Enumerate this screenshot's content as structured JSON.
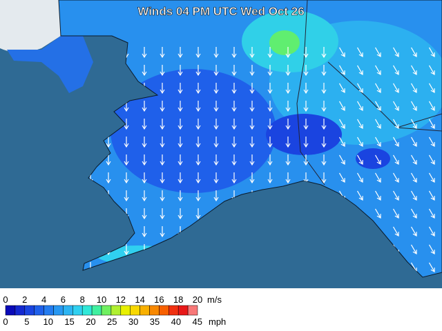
{
  "title": "Winds 04 PM UTC Wed Oct 26",
  "legend": {
    "ms_labels": [
      0,
      2,
      4,
      6,
      8,
      10,
      12,
      14,
      16,
      18,
      20
    ],
    "ms_unit": "m/s",
    "mph_labels": [
      0,
      5,
      10,
      15,
      20,
      25,
      30,
      35,
      40,
      45
    ],
    "mph_unit": "mph",
    "colors": [
      "#0a0ab8",
      "#1428d0",
      "#1a44e0",
      "#1f60ea",
      "#247cf0",
      "#2898f2",
      "#2cb4f2",
      "#30d0f0",
      "#30e8d8",
      "#40f0a0",
      "#70f060",
      "#b0f030",
      "#e8f000",
      "#f8d800",
      "#f8b000",
      "#f88800",
      "#f86000",
      "#f03010",
      "#e81818",
      "#f87878"
    ]
  }
}
